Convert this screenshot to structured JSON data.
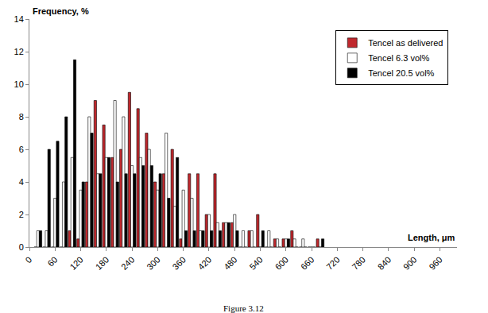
{
  "chart_data": {
    "type": "bar",
    "x_label": "Length, μm",
    "y_label": "Frequency, %",
    "caption": "Figure 3.12",
    "x": [
      20,
      40,
      60,
      80,
      100,
      120,
      140,
      160,
      180,
      200,
      220,
      240,
      260,
      280,
      300,
      320,
      340,
      360,
      380,
      400,
      420,
      440,
      460,
      480,
      500,
      520,
      540,
      560,
      580,
      600,
      620,
      640,
      660,
      680
    ],
    "series": [
      {
        "name": "Tencel as delivered",
        "color": "#c0282d",
        "values": [
          0,
          0,
          0,
          0,
          1,
          0.5,
          4,
          9,
          7.5,
          5.5,
          6,
          9.5,
          8.5,
          7,
          4,
          4.5,
          6,
          0.5,
          4.5,
          4.5,
          2,
          4.5,
          1.5,
          1.5,
          0,
          1,
          2,
          0,
          0.5,
          0.5,
          1,
          0,
          0,
          0.5
        ]
      },
      {
        "name": "Tencel 6.3 vol%",
        "color": "#ffffff",
        "values": [
          1,
          1,
          3,
          4,
          5.5,
          3.5,
          8,
          4.5,
          5.5,
          9,
          8,
          5,
          5.5,
          6,
          3.5,
          7,
          2.5,
          3.5,
          3,
          1,
          2,
          1.5,
          1.5,
          2,
          1,
          1,
          0,
          1,
          0.5,
          0.5,
          0.5,
          0.5,
          0,
          0
        ]
      },
      {
        "name": "Tencel 20.5 vol%",
        "color": "#000000",
        "values": [
          1,
          6,
          6.5,
          8,
          11.5,
          4,
          7,
          4.5,
          5.5,
          4,
          4.5,
          4.5,
          5,
          5,
          4.5,
          3,
          5.5,
          1,
          1,
          1,
          1,
          1,
          1.5,
          1,
          0,
          0,
          1,
          0,
          0,
          0.5,
          0,
          0,
          0,
          0.5
        ]
      }
    ],
    "xlim": [
      0,
      1000
    ],
    "xticks": [
      0,
      60,
      120,
      180,
      240,
      300,
      360,
      420,
      480,
      540,
      600,
      660,
      720,
      780,
      840,
      900,
      960
    ],
    "ylim": [
      0,
      14
    ],
    "yticks": [
      0,
      2,
      4,
      6,
      8,
      10,
      12,
      14
    ],
    "grid": false,
    "legend": "top right"
  }
}
